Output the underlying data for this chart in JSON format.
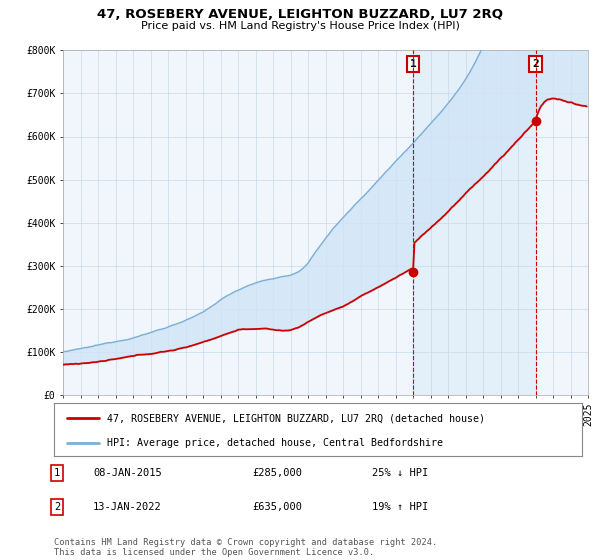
{
  "title": "47, ROSEBERY AVENUE, LEIGHTON BUZZARD, LU7 2RQ",
  "subtitle": "Price paid vs. HM Land Registry's House Price Index (HPI)",
  "ylim": [
    0,
    800000
  ],
  "yticks": [
    0,
    100000,
    200000,
    300000,
    400000,
    500000,
    600000,
    700000,
    800000
  ],
  "ytick_labels": [
    "£0",
    "£100K",
    "£200K",
    "£300K",
    "£400K",
    "£500K",
    "£600K",
    "£700K",
    "£800K"
  ],
  "hpi_color": "#7bafd4",
  "price_color": "#cc0000",
  "point1_date": "08-JAN-2015",
  "point1_price": 285000,
  "point1_hpi_pct": "25% ↓ HPI",
  "point2_date": "13-JAN-2022",
  "point2_price": 635000,
  "point2_hpi_pct": "19% ↑ HPI",
  "legend_house_label": "47, ROSEBERY AVENUE, LEIGHTON BUZZARD, LU7 2RQ (detached house)",
  "legend_hpi_label": "HPI: Average price, detached house, Central Bedfordshire",
  "footer": "Contains HM Land Registry data © Crown copyright and database right 2024.\nThis data is licensed under the Open Government Licence v3.0.",
  "x_start_year": 1995,
  "x_end_year": 2025,
  "shade_color": "#d0e4f7",
  "span_color": "#d8eaf8"
}
